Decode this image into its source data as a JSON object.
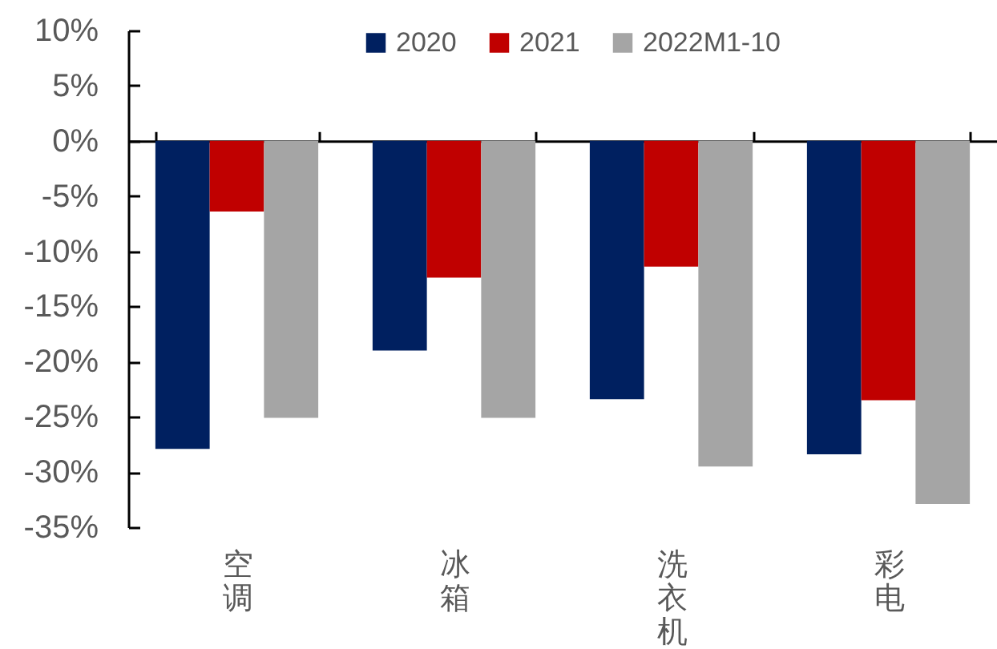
{
  "chart_data": {
    "type": "bar",
    "categories": [
      "空调",
      "冰箱",
      "洗衣机",
      "彩电"
    ],
    "series": [
      {
        "name": "2020",
        "color": "#002060",
        "values": [
          -27.9,
          -19.0,
          -23.4,
          -28.4
        ]
      },
      {
        "name": "2021",
        "color": "#c00000",
        "values": [
          -6.4,
          -12.4,
          -11.4,
          -23.5
        ]
      },
      {
        "name": "2022M1-10",
        "color": "#a5a5a5",
        "values": [
          -25.1,
          -25.1,
          -29.5,
          -32.9
        ]
      }
    ],
    "ylim": [
      -35,
      10
    ],
    "yticks": [
      {
        "value": -35,
        "label": "-35%"
      },
      {
        "value": -30,
        "label": "-30%"
      },
      {
        "value": -25,
        "label": "-25%"
      },
      {
        "value": -20,
        "label": "-20%"
      },
      {
        "value": -15,
        "label": "-15%"
      },
      {
        "value": -10,
        "label": "-10%"
      },
      {
        "value": -5,
        "label": "-5%"
      },
      {
        "value": 0,
        "label": "0%"
      },
      {
        "value": 5,
        "label": "5%"
      },
      {
        "value": 10,
        "label": "10%"
      }
    ],
    "legend": "top"
  }
}
